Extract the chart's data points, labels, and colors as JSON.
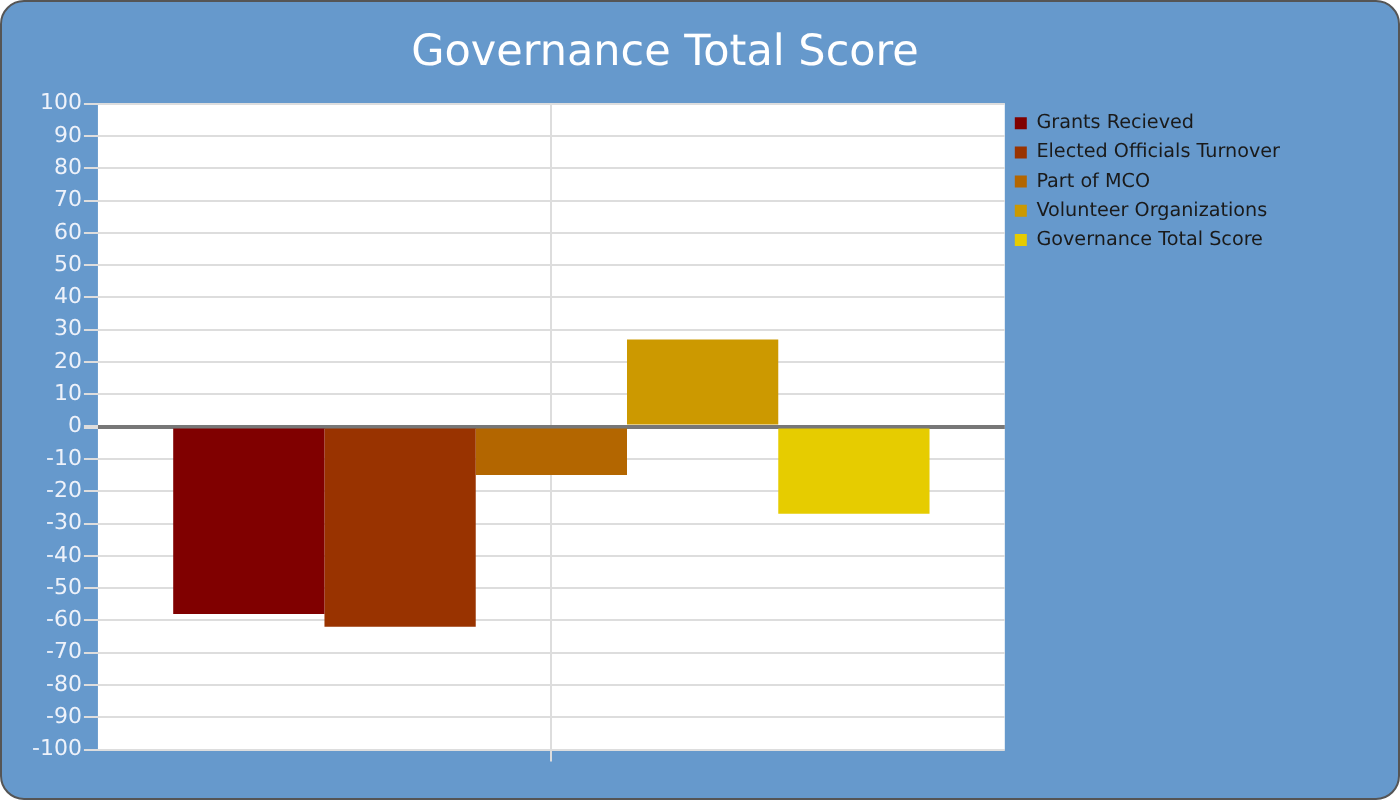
{
  "chart_data": {
    "type": "bar",
    "title": "Governance Total Score",
    "categories": [
      null
    ],
    "series": [
      {
        "name": "Grants Recieved",
        "color": "#800000",
        "values": [
          -58
        ]
      },
      {
        "name": "Elected Officials Turnover",
        "color": "#993300",
        "values": [
          -62
        ]
      },
      {
        "name": "Part of MCO",
        "color": "#b36600",
        "values": [
          -15
        ]
      },
      {
        "name": "Volunteer Organizations",
        "color": "#cc9900",
        "values": [
          27
        ]
      },
      {
        "name": "Governance Total Score",
        "color": "#e6cc00",
        "values": [
          -27
        ]
      }
    ],
    "ylim": [
      -100,
      100
    ],
    "yticks": [
      -100,
      -90,
      -80,
      -70,
      -60,
      -50,
      -40,
      -30,
      -20,
      -10,
      0,
      10,
      20,
      30,
      40,
      50,
      60,
      70,
      80,
      90,
      100
    ],
    "grid": true,
    "legend": "top right"
  }
}
